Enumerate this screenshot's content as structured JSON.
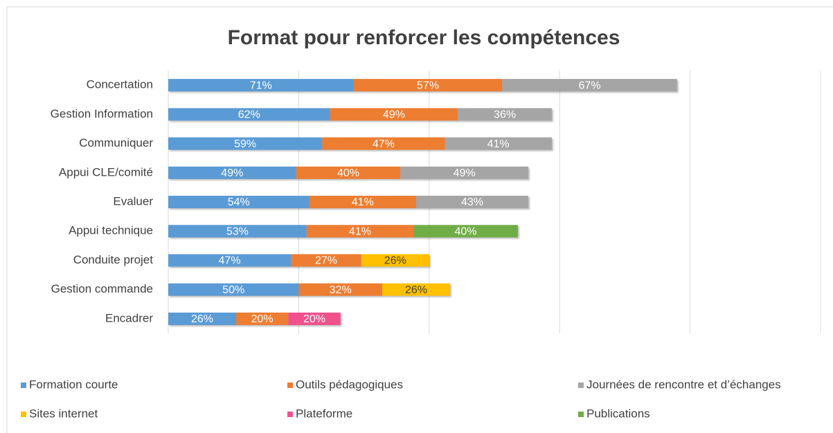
{
  "chart_data": {
    "type": "bar",
    "orientation": "horizontal",
    "stacked": true,
    "title": "Format pour renforcer les compétences",
    "categories": [
      "Concertation",
      "Gestion Information",
      "Communiquer",
      "Appui CLE/comité",
      "Evaluer",
      "Appui technique",
      "Conduite projet",
      "Gestion commande",
      "Encadrer"
    ],
    "series": [
      {
        "name": "Formation courte",
        "color": "#5b9bd5",
        "values": [
          71,
          62,
          59,
          49,
          54,
          53,
          47,
          50,
          26
        ],
        "value_labels": [
          "71%",
          "62%",
          "59%",
          "49%",
          "54%",
          "53%",
          "47%",
          "50%",
          "26%"
        ]
      },
      {
        "name": "Outils pédagogiques",
        "color": "#ed7d31",
        "values": [
          57,
          49,
          47,
          40,
          41,
          41,
          27,
          32,
          20
        ],
        "value_labels": [
          "57%",
          "49%",
          "47%",
          "40%",
          "41%",
          "41%",
          "27%",
          "32%",
          "20%"
        ]
      },
      {
        "name": "Journées de rencontre et d’échanges",
        "color": "#a5a5a5",
        "values": [
          67,
          36,
          41,
          49,
          43,
          null,
          null,
          null,
          null
        ],
        "value_labels": [
          "67%",
          "36%",
          "41%",
          "49%",
          "43%",
          null,
          null,
          null,
          null
        ]
      },
      {
        "name": "Sites internet",
        "color": "#ffc000",
        "values": [
          null,
          null,
          null,
          null,
          null,
          null,
          26,
          26,
          null
        ],
        "value_labels": [
          null,
          null,
          null,
          null,
          null,
          null,
          "26%",
          "26%",
          null
        ]
      },
      {
        "name": "Plateforme",
        "color": "#f0508c",
        "values": [
          null,
          null,
          null,
          null,
          null,
          null,
          null,
          null,
          20
        ],
        "value_labels": [
          null,
          null,
          null,
          null,
          null,
          null,
          null,
          null,
          "20%"
        ]
      },
      {
        "name": "Publications",
        "color": "#70ad47",
        "values": [
          null,
          null,
          null,
          null,
          null,
          40,
          null,
          null,
          null
        ],
        "value_labels": [
          null,
          null,
          null,
          null,
          null,
          "40%",
          null,
          null,
          null
        ]
      }
    ],
    "xlim": [
      0,
      250
    ],
    "xticks": [
      0,
      50,
      100,
      150,
      200,
      250
    ],
    "grid": true,
    "legend": "bottom"
  }
}
